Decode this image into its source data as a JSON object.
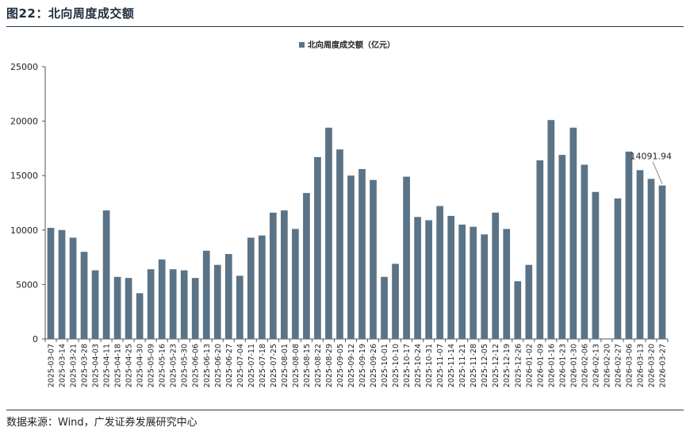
{
  "figure": {
    "title": "图22：北向周度成交额",
    "source": "数据来源：Wind，广发证券发展研究中心"
  },
  "colors": {
    "bar": "#5a7387",
    "axis": "#555555",
    "text": "#222222"
  },
  "chart_data": {
    "type": "bar",
    "title": "",
    "legend": {
      "entries": [
        "北向周度成交额（亿元）"
      ],
      "position": "top-center"
    },
    "xlabel": "",
    "ylabel": "",
    "ylim": [
      0,
      25000
    ],
    "yticks": [
      "0",
      "5000",
      "10000",
      "15000",
      "20000",
      "25000"
    ],
    "grid": false,
    "categories": [
      "2025-03-07",
      "2025-03-14",
      "2025-03-21",
      "2025-03-28",
      "2025-04-03",
      "2025-04-11",
      "2025-04-18",
      "2025-04-25",
      "2025-04-30",
      "2025-05-09",
      "2025-05-16",
      "2025-05-23",
      "2025-05-30",
      "2025-06-06",
      "2025-06-13",
      "2025-06-20",
      "2025-06-27",
      "2025-07-04",
      "2025-07-11",
      "2025-07-18",
      "2025-07-25",
      "2025-08-01",
      "2025-08-08",
      "2025-08-15",
      "2025-08-22",
      "2025-08-29",
      "2025-09-05",
      "2025-09-12",
      "2025-09-19",
      "2025-09-26",
      "2025-10-01",
      "2025-10-10",
      "2025-10-17",
      "2025-10-24",
      "2025-10-31",
      "2025-11-07",
      "2025-11-14",
      "2025-11-21",
      "2025-11-28",
      "2025-12-05",
      "2025-12-12",
      "2025-12-19",
      "2025-12-26",
      "2026-01-02",
      "2026-01-09",
      "2026-01-16",
      "2026-01-23",
      "2026-01-30",
      "2026-02-06",
      "2026-02-13",
      "2026-02-20",
      "2026-02-27",
      "2026-03-06",
      "2026-03-13",
      "2026-03-20",
      "2026-03-27"
    ],
    "series": [
      {
        "name": "北向周度成交额（亿元）",
        "values": [
          10200,
          10000,
          9300,
          8000,
          6300,
          11800,
          5700,
          5600,
          4200,
          6400,
          7300,
          6400,
          6300,
          5600,
          8100,
          6800,
          7800,
          5800,
          9300,
          9500,
          11600,
          11800,
          10100,
          13400,
          16700,
          19400,
          17400,
          15000,
          15600,
          14600,
          5700,
          6900,
          14900,
          11200,
          10900,
          12200,
          11300,
          10500,
          10300,
          9600,
          11600,
          10100,
          5300,
          6800,
          16400,
          20100,
          16900,
          19400,
          16000,
          13500,
          null,
          12900,
          17200,
          15500,
          14700,
          14091.94
        ]
      }
    ],
    "annotations": [
      {
        "text": "14091.94",
        "category": "2026-03-27"
      }
    ]
  }
}
